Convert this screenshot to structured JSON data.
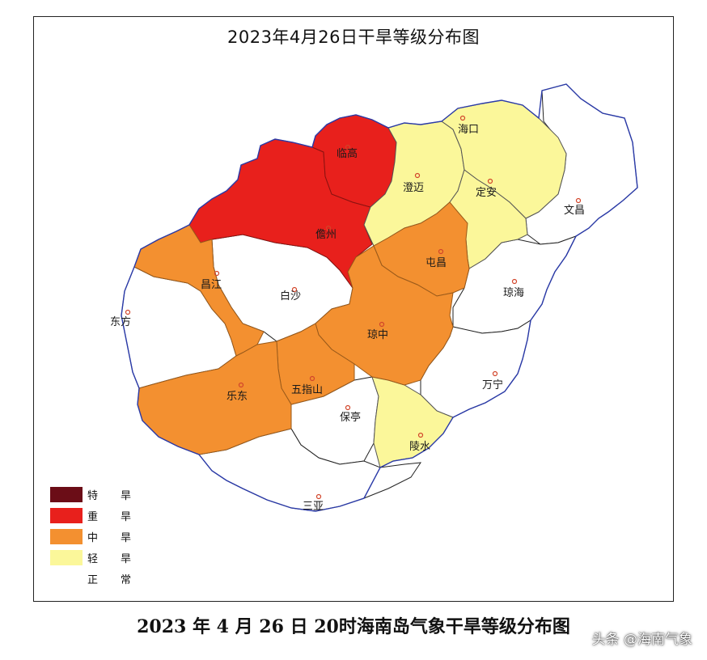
{
  "map": {
    "title": "2023年4月26日干旱等级分布图",
    "caption": "2023 年 4 月 26 日 20时海南岛气象干旱等级分布图",
    "watermark": "头条 @海南气象",
    "legend": [
      {
        "label_a": "特",
        "label_b": "旱",
        "color": "#6b0d17"
      },
      {
        "label_a": "重",
        "label_b": "旱",
        "color": "#e8201c"
      },
      {
        "label_a": "中",
        "label_b": "旱",
        "color": "#f39030"
      },
      {
        "label_a": "轻",
        "label_b": "旱",
        "color": "#fbf79a"
      },
      {
        "label_a": "正",
        "label_b": "常",
        "color": "#ffffff"
      }
    ],
    "counties": [
      {
        "name": "海口",
        "level": "轻旱"
      },
      {
        "name": "临高",
        "level": "重旱"
      },
      {
        "name": "澄迈",
        "level": "轻旱"
      },
      {
        "name": "定安",
        "level": "轻旱"
      },
      {
        "name": "文昌",
        "level": "正常"
      },
      {
        "name": "儋州",
        "level": "重旱"
      },
      {
        "name": "屯昌",
        "level": "中旱"
      },
      {
        "name": "昌江",
        "level": "中旱"
      },
      {
        "name": "白沙",
        "level": "正常"
      },
      {
        "name": "琼海",
        "level": "正常"
      },
      {
        "name": "东方",
        "level": "正常"
      },
      {
        "name": "琼中",
        "level": "中旱"
      },
      {
        "name": "万宁",
        "level": "正常"
      },
      {
        "name": "乐东",
        "level": "中旱"
      },
      {
        "name": "五指山",
        "level": "中旱"
      },
      {
        "name": "保亭",
        "level": "正常"
      },
      {
        "name": "陵水",
        "level": "轻旱"
      },
      {
        "name": "三亚",
        "level": "正常"
      }
    ]
  }
}
